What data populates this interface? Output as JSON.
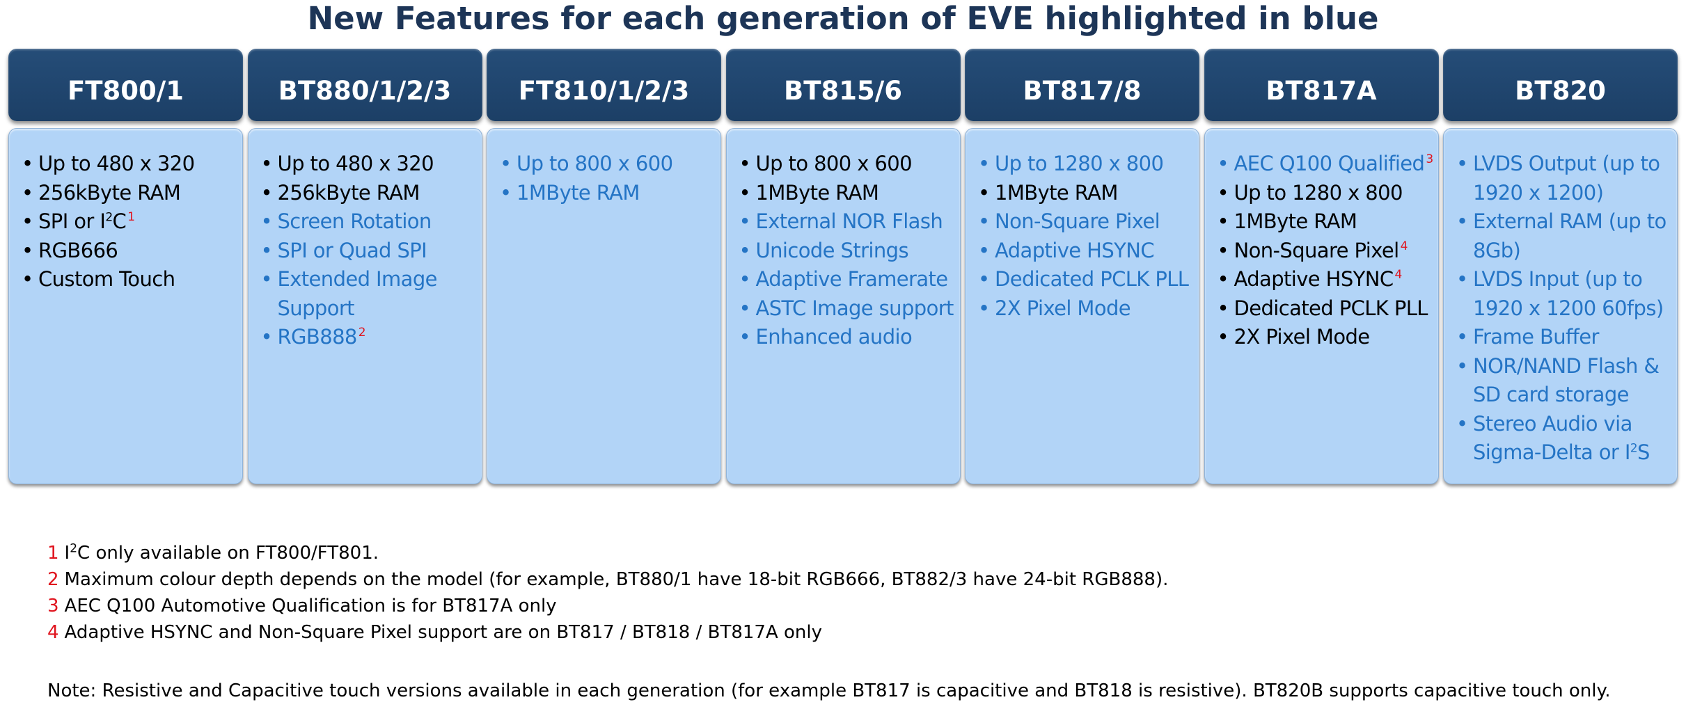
{
  "title": "New Features for each generation of EVE highlighted in blue",
  "colors": {
    "header": "#1f4a73",
    "body": "#b2d4f7",
    "new_feature": "#2474c5",
    "footnote_mark": "#e0141e",
    "title": "#1d3557"
  },
  "columns": [
    {
      "name": "FT800/1",
      "features": [
        {
          "text": "Up to 480 x 320",
          "new": false
        },
        {
          "text": "256kByte RAM",
          "new": false
        },
        {
          "text": "SPI or I",
          "sup": "2",
          "tail": "C",
          "note": "1",
          "new": false
        },
        {
          "text": "RGB666",
          "new": false
        },
        {
          "text": "Custom Touch",
          "new": false
        }
      ]
    },
    {
      "name": "BT880/1/2/3",
      "features": [
        {
          "text": "Up to 480 x 320",
          "new": false
        },
        {
          "text": "256kByte RAM",
          "new": false
        },
        {
          "text": "Screen Rotation",
          "new": true
        },
        {
          "text": "SPI or Quad SPI",
          "new": true
        },
        {
          "text": "Extended Image Support",
          "new": true
        },
        {
          "text": "RGB888",
          "note": "2",
          "new": true
        }
      ]
    },
    {
      "name": "FT810/1/2/3",
      "features": [
        {
          "text": "Up to 800 x 600",
          "new": true
        },
        {
          "text": "1MByte RAM",
          "new": true
        }
      ]
    },
    {
      "name": "BT815/6",
      "features": [
        {
          "text": "Up to 800 x 600",
          "new": false
        },
        {
          "text": "1MByte RAM",
          "new": false
        },
        {
          "text": "External NOR Flash",
          "new": true
        },
        {
          "text": "Unicode Strings",
          "new": true
        },
        {
          "text": "Adaptive Framerate",
          "new": true
        },
        {
          "text": "ASTC Image support",
          "new": true
        },
        {
          "text": "Enhanced audio",
          "new": true
        }
      ]
    },
    {
      "name": "BT817/8",
      "features": [
        {
          "text": "Up to 1280 x 800",
          "new": true
        },
        {
          "text": "1MByte RAM",
          "new": false
        },
        {
          "text": "Non-Square Pixel",
          "new": true
        },
        {
          "text": "Adaptive HSYNC",
          "new": true
        },
        {
          "text": "Dedicated PCLK PLL",
          "new": true
        },
        {
          "text": "2X Pixel Mode",
          "new": true
        }
      ]
    },
    {
      "name": "BT817A",
      "features": [
        {
          "text": "AEC Q100 Qualified",
          "note": "3",
          "new": true
        },
        {
          "text": "Up to 1280 x 800",
          "new": false
        },
        {
          "text": "1MByte RAM",
          "new": false
        },
        {
          "text": "Non-Square Pixel",
          "note": "4",
          "new": false
        },
        {
          "text": "Adaptive HSYNC",
          "note": "4",
          "new": false
        },
        {
          "text": "Dedicated PCLK PLL",
          "new": false
        },
        {
          "text": "2X Pixel Mode",
          "new": false
        }
      ]
    },
    {
      "name": "BT820",
      "features": [
        {
          "text": "LVDS Output (up to 1920 x 1200)",
          "new": true
        },
        {
          "text": "External RAM (up to 8Gb)",
          "new": true
        },
        {
          "text": "LVDS Input (up to 1920 x 1200 60fps)",
          "new": true
        },
        {
          "text": "Frame Buffer",
          "new": true
        },
        {
          "text": "NOR/NAND Flash & SD card storage",
          "new": true
        },
        {
          "text": "Stereo Audio via Sigma-Delta or I",
          "sup": "2",
          "tail": "S",
          "new": true
        }
      ]
    }
  ],
  "footnotes": [
    {
      "num": "1",
      "text": "I",
      "sup": "2",
      "tail": "C only available on FT800/FT801."
    },
    {
      "num": "2",
      "text": "Maximum colour depth depends on the model  (for example, BT880/1 have 18-bit RGB666, BT882/3 have 24-bit RGB888)."
    },
    {
      "num": "3",
      "text": "AEC Q100 Automotive Qualification is for BT817A only"
    },
    {
      "num": "4",
      "text": "Adaptive HSYNC and Non-Square Pixel support are on BT817 / BT818 / BT817A only"
    }
  ],
  "note": "Note: Resistive and Capacitive touch versions available in each generation  (for example BT817 is capacitive and BT818 is resistive). BT820B supports capacitive touch only."
}
